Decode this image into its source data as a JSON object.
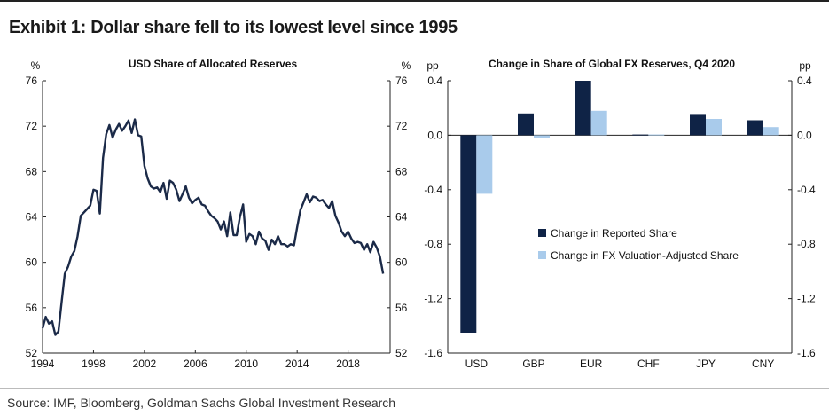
{
  "title": "Exhibit 1: Dollar share fell to its lowest level since 1995",
  "source": "Source: IMF, Bloomberg, Goldman Sachs Global Investment Research",
  "chart_data": [
    {
      "type": "line",
      "title": "USD Share of Allocated Reserves",
      "unit_left": "%",
      "unit_right": "%",
      "xlim": [
        1994,
        2021.3
      ],
      "ylim": [
        52,
        76
      ],
      "y_ticks": [
        52,
        56,
        60,
        64,
        68,
        72,
        76
      ],
      "x_ticks": [
        1994,
        1998,
        2002,
        2006,
        2010,
        2014,
        2018
      ],
      "line_color": "#1b2a48",
      "series": [
        {
          "x": [
            1994.0,
            1994.25,
            1994.5,
            1994.75,
            1995.0,
            1995.25,
            1995.5,
            1995.75,
            1996.0,
            1996.25,
            1996.5,
            1996.75,
            1997.0,
            1997.25,
            1997.5,
            1997.75,
            1998.0,
            1998.25,
            1998.5,
            1998.75,
            1999.0,
            1999.25,
            1999.5,
            1999.75,
            2000.0,
            2000.25,
            2000.5,
            2000.75,
            2001.0,
            2001.25,
            2001.5,
            2001.75,
            2002.0,
            2002.25,
            2002.5,
            2002.75,
            2003.0,
            2003.25,
            2003.5,
            2003.75,
            2004.0,
            2004.25,
            2004.5,
            2004.75,
            2005.0,
            2005.25,
            2005.5,
            2005.75,
            2006.0,
            2006.25,
            2006.5,
            2006.75,
            2007.0,
            2007.25,
            2007.5,
            2007.75,
            2008.0,
            2008.25,
            2008.5,
            2008.75,
            2009.0,
            2009.25,
            2009.5,
            2009.75,
            2010.0,
            2010.25,
            2010.5,
            2010.75,
            2011.0,
            2011.25,
            2011.5,
            2011.75,
            2012.0,
            2012.25,
            2012.5,
            2012.75,
            2013.0,
            2013.25,
            2013.5,
            2013.75,
            2014.0,
            2014.25,
            2014.5,
            2014.75,
            2015.0,
            2015.25,
            2015.5,
            2015.75,
            2016.0,
            2016.25,
            2016.5,
            2016.75,
            2017.0,
            2017.25,
            2017.5,
            2017.75,
            2018.0,
            2018.25,
            2018.5,
            2018.75,
            2019.0,
            2019.25,
            2019.5,
            2019.75,
            2020.0,
            2020.25,
            2020.5,
            2020.75
          ],
          "y": [
            54.2,
            55.2,
            54.6,
            54.8,
            53.6,
            53.9,
            56.5,
            59.0,
            59.6,
            60.5,
            61.0,
            62.3,
            64.1,
            64.4,
            64.7,
            65.0,
            66.4,
            66.3,
            64.3,
            69.2,
            71.3,
            72.1,
            71.0,
            71.7,
            72.2,
            71.6,
            72.0,
            72.5,
            71.4,
            72.6,
            71.2,
            71.1,
            68.5,
            67.4,
            66.7,
            66.5,
            66.6,
            66.2,
            67.0,
            65.6,
            67.2,
            67.0,
            66.4,
            65.4,
            66.0,
            66.7,
            65.7,
            65.2,
            65.5,
            65.7,
            65.1,
            65.0,
            64.5,
            64.1,
            63.9,
            63.6,
            62.9,
            63.6,
            62.3,
            64.4,
            62.4,
            62.4,
            64.0,
            65.1,
            61.8,
            62.5,
            62.3,
            61.6,
            62.7,
            62.1,
            61.9,
            61.1,
            62.0,
            61.6,
            62.3,
            61.6,
            61.6,
            61.4,
            61.6,
            61.5,
            63.1,
            64.6,
            65.3,
            66.0,
            65.3,
            65.8,
            65.7,
            65.4,
            65.5,
            65.1,
            64.8,
            65.4,
            64.1,
            63.5,
            62.7,
            62.3,
            62.7,
            62.1,
            61.7,
            61.8,
            61.7,
            61.1,
            61.6,
            60.9,
            61.8,
            61.3,
            60.5,
            59.0
          ]
        }
      ]
    },
    {
      "type": "bar",
      "title": "Change in Share of Global FX Reserves, Q4 2020",
      "unit_left": "pp",
      "unit_right": "pp",
      "ylim": [
        -1.6,
        0.4
      ],
      "y_ticks": [
        0.4,
        0.0,
        -0.4,
        -0.8,
        -1.2,
        -1.6
      ],
      "y_tick_labels": [
        "0.4",
        "0.0",
        "-0.4",
        "-0.8",
        "-1.2",
        "-1.6"
      ],
      "categories": [
        "USD",
        "GBP",
        "EUR",
        "CHF",
        "JPY",
        "CNY"
      ],
      "series": [
        {
          "name": "Change in Reported Share",
          "color": "#0f2346",
          "values": [
            -1.45,
            0.16,
            0.4,
            0.005,
            0.15,
            0.11
          ]
        },
        {
          "name": "Change in FX Valuation-Adjusted Share",
          "color": "#a9cbeb",
          "values": [
            -0.43,
            -0.02,
            0.18,
            0.005,
            0.12,
            0.06
          ]
        }
      ]
    }
  ]
}
